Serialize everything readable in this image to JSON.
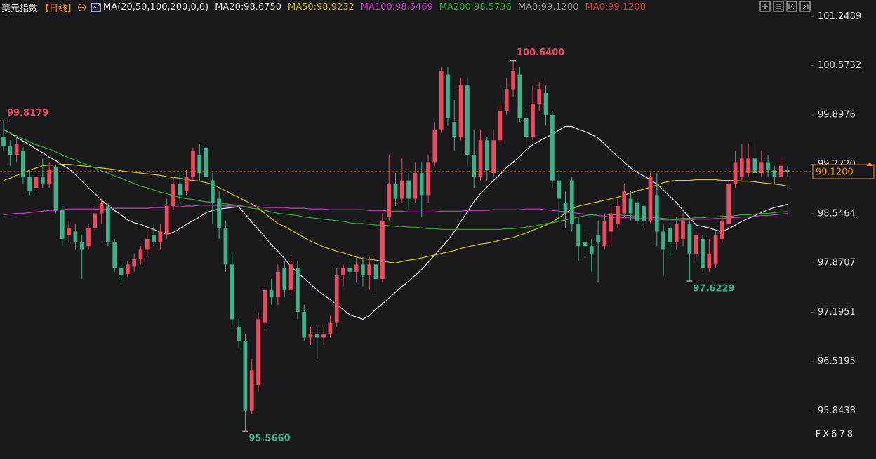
{
  "chart_data": {
    "type": "candlestick",
    "title": "美元指数",
    "period": "【日线】",
    "indicator": "MA(20,50,100,200,0,0)",
    "up_color": "#ec4a5e",
    "down_color": "#3fb08c",
    "ylim": [
      95.28,
      101.3
    ],
    "yticks": [
      101.2489,
      100.5732,
      99.8976,
      {
        "value": 99.222,
        "label": "99.2220"
      },
      98.5464,
      97.8707,
      97.1951,
      96.5195,
      95.8438
    ],
    "grid": false,
    "last_price": {
      "value": 99.12,
      "label": "99.1200",
      "color": "#f0902a"
    },
    "annotations": [
      {
        "value": 99.8179,
        "label": "99.8179"
      },
      {
        "value": 100.64,
        "label": "100.6400"
      },
      {
        "value": 95.566,
        "label": "95.5660"
      },
      {
        "value": 97.6229,
        "label": "97.6229"
      }
    ],
    "watermark": "FX678",
    "open": [
      99.6,
      99.47,
      99.35,
      99.4,
      99.05,
      98.9,
      99.05,
      98.95,
      99.18,
      98.6,
      98.25,
      98.3,
      98.15,
      98.1,
      98.35,
      98.55,
      98.65,
      98.15,
      97.8,
      97.72,
      97.82,
      97.92,
      98.05,
      98.25,
      98.15,
      98.25,
      98.65,
      98.95,
      98.85,
      99.05,
      99.35,
      99.45,
      99.0,
      98.75,
      98.35,
      97.85,
      97.0,
      96.8,
      95.85,
      96.2,
      97.05,
      97.5,
      97.4,
      97.8,
      97.5,
      97.8,
      97.2,
      96.85,
      96.9,
      96.85,
      96.9,
      97.05,
      97.7,
      97.8,
      97.75,
      97.85,
      97.7,
      97.85,
      97.65,
      98.5,
      98.95,
      98.75,
      99.0,
      98.75,
      99.1,
      98.8,
      99.25,
      99.7,
      100.45,
      99.8,
      99.6,
      100.3,
      99.35,
      99.05,
      99.55,
      99.1,
      99.55,
      99.95,
      100.25,
      100.45,
      99.85,
      99.6,
      100.05,
      100.2,
      99.9,
      99.0,
      98.7,
      99.0,
      98.4,
      98.15,
      98.1,
      98.25,
      98.1,
      98.3,
      98.4,
      98.55,
      98.75,
      98.7,
      98.65,
      98.45,
      98.8,
      98.3,
      98.35,
      98.15,
      98.2,
      98.4,
      98.0,
      98.2,
      97.8,
      97.85,
      98.2,
      98.4,
      98.95,
      99.05,
      99.1,
      99.3,
      99.1,
      99.25,
      99.15,
      99.05,
      99.15
    ],
    "high": [
      99.8179,
      99.55,
      99.6,
      99.45,
      99.15,
      99.2,
      99.3,
      99.25,
      99.22,
      98.65,
      98.45,
      98.4,
      98.25,
      98.4,
      98.65,
      98.75,
      98.7,
      98.2,
      97.9,
      97.9,
      98.0,
      98.1,
      98.3,
      98.4,
      98.4,
      98.75,
      99.05,
      99.1,
      99.15,
      99.45,
      99.5,
      99.5,
      99.1,
      98.85,
      98.45,
      98.0,
      97.1,
      96.9,
      96.55,
      97.2,
      97.6,
      97.65,
      97.85,
      97.9,
      97.95,
      97.9,
      97.3,
      97.0,
      97.0,
      97.0,
      97.15,
      97.8,
      97.85,
      97.95,
      97.95,
      97.95,
      97.95,
      97.95,
      98.55,
      99.35,
      99.1,
      99.3,
      99.1,
      99.25,
      99.25,
      99.35,
      99.8,
      100.55,
      100.55,
      100.1,
      100.4,
      100.4,
      99.7,
      99.7,
      99.6,
      99.7,
      100.05,
      100.4,
      100.64,
      100.55,
      99.95,
      100.3,
      100.35,
      100.3,
      99.95,
      99.15,
      98.85,
      99.05,
      98.5,
      98.3,
      98.2,
      98.45,
      98.55,
      98.65,
      98.75,
      98.95,
      98.85,
      98.75,
      98.7,
      99.1,
      99.1,
      98.4,
      98.5,
      98.5,
      98.55,
      98.45,
      98.3,
      98.25,
      98.2,
      98.3,
      98.55,
      99.0,
      99.4,
      99.5,
      99.5,
      99.55,
      99.4,
      99.35,
      99.2,
      99.3,
      99.2
    ],
    "low": [
      99.4,
      99.2,
      99.25,
      98.95,
      98.8,
      98.85,
      98.9,
      98.9,
      98.55,
      98.1,
      98.15,
      98.05,
      97.65,
      98.05,
      98.3,
      98.4,
      98.1,
      97.75,
      97.6,
      97.68,
      97.75,
      97.85,
      97.95,
      98.1,
      98.05,
      98.2,
      98.6,
      98.7,
      98.8,
      99.0,
      99.0,
      98.95,
      98.4,
      98.2,
      97.75,
      97.0,
      96.7,
      95.566,
      95.8,
      96.1,
      96.95,
      97.3,
      97.3,
      97.4,
      97.45,
      97.1,
      96.8,
      96.75,
      96.55,
      96.75,
      96.85,
      97.0,
      97.55,
      97.65,
      97.6,
      97.55,
      97.5,
      97.45,
      97.6,
      98.45,
      98.65,
      98.7,
      98.6,
      98.7,
      98.5,
      98.7,
      99.2,
      99.65,
      99.75,
      99.4,
      99.55,
      99.2,
      98.9,
      99.0,
      99.0,
      99.05,
      99.5,
      99.9,
      100.15,
      99.8,
      99.45,
      99.55,
      99.95,
      99.75,
      98.9,
      98.45,
      98.35,
      98.3,
      97.9,
      97.95,
      97.75,
      97.6,
      98.05,
      98.1,
      98.35,
      98.5,
      98.45,
      98.4,
      98.35,
      98.4,
      98.1,
      97.7,
      97.95,
      98.05,
      98.1,
      97.6229,
      97.9,
      97.75,
      97.75,
      97.8,
      98.15,
      98.35,
      98.9,
      99.0,
      99.05,
      99.05,
      99.05,
      99.05,
      98.95,
      99.0,
      99.05
    ],
    "close": [
      99.47,
      99.35,
      99.5,
      99.05,
      98.85,
      99.05,
      98.95,
      99.15,
      98.6,
      98.2,
      98.35,
      98.15,
      98.05,
      98.35,
      98.55,
      98.7,
      98.15,
      97.8,
      97.7,
      97.85,
      97.92,
      98.05,
      98.2,
      98.15,
      98.3,
      98.65,
      98.95,
      98.8,
      99.05,
      99.4,
      99.1,
      99.05,
      98.7,
      98.35,
      97.85,
      97.1,
      96.8,
      95.85,
      96.4,
      97.1,
      97.5,
      97.4,
      97.75,
      97.5,
      97.85,
      97.2,
      96.85,
      96.9,
      96.85,
      96.9,
      97.05,
      97.7,
      97.8,
      97.75,
      97.85,
      97.7,
      97.85,
      97.65,
      98.45,
      98.95,
      98.75,
      99.0,
      98.75,
      99.1,
      98.8,
      99.25,
      99.7,
      100.5,
      99.85,
      99.6,
      100.3,
      99.35,
      99.05,
      99.55,
      99.15,
      99.55,
      99.95,
      100.25,
      100.5,
      99.85,
      99.6,
      100.05,
      100.25,
      99.9,
      99.0,
      98.75,
      98.55,
      98.4,
      98.1,
      98.1,
      98.0,
      98.15,
      98.45,
      98.55,
      98.65,
      98.85,
      98.55,
      98.45,
      98.45,
      99.05,
      98.3,
      98.05,
      98.15,
      98.4,
      98.45,
      98.0,
      98.25,
      97.8,
      98.0,
      98.25,
      98.45,
      98.95,
      99.25,
      99.3,
      99.3,
      99.1,
      99.25,
      99.15,
      99.05,
      99.2,
      99.12
    ],
    "series": [
      {
        "name": "MA20:98.6750",
        "color": "#e6e6e6",
        "values": [
          99.7,
          99.65,
          99.59,
          99.54,
          99.49,
          99.43,
          99.38,
          99.32,
          99.27,
          99.21,
          99.16,
          99.08,
          98.99,
          98.9,
          98.82,
          98.73,
          98.66,
          98.59,
          98.53,
          98.46,
          98.42,
          98.4,
          98.36,
          98.33,
          98.29,
          98.26,
          98.29,
          98.34,
          98.4,
          98.45,
          98.5,
          98.56,
          98.59,
          98.61,
          98.62,
          98.63,
          98.64,
          98.54,
          98.43,
          98.33,
          98.23,
          98.12,
          98.03,
          97.93,
          97.82,
          97.74,
          97.66,
          97.58,
          97.5,
          97.43,
          97.37,
          97.3,
          97.23,
          97.16,
          97.13,
          97.1,
          97.15,
          97.24,
          97.31,
          97.39,
          97.47,
          97.55,
          97.62,
          97.7,
          97.78,
          97.88,
          97.98,
          98.08,
          98.18,
          98.3,
          98.44,
          98.57,
          98.71,
          98.82,
          98.91,
          99.0,
          99.08,
          99.18,
          99.25,
          99.33,
          99.42,
          99.49,
          99.54,
          99.59,
          99.63,
          99.69,
          99.74,
          99.74,
          99.7,
          99.67,
          99.63,
          99.58,
          99.5,
          99.41,
          99.33,
          99.25,
          99.17,
          99.11,
          99.06,
          99.01,
          98.95,
          98.87,
          98.78,
          98.7,
          98.59,
          98.49,
          98.39,
          98.37,
          98.35,
          98.32,
          98.3,
          98.34,
          98.39,
          98.44,
          98.48,
          98.52,
          98.56,
          98.6,
          98.63,
          98.65,
          98.675
        ]
      },
      {
        "name": "MA50:98.9232",
        "color": "#d6c41c",
        "values": [
          99.0,
          99.03,
          99.07,
          99.1,
          99.14,
          99.17,
          99.2,
          99.21,
          99.21,
          99.22,
          99.22,
          99.21,
          99.2,
          99.19,
          99.18,
          99.17,
          99.16,
          99.15,
          99.13,
          99.12,
          99.11,
          99.1,
          99.09,
          99.08,
          99.07,
          99.05,
          99.04,
          99.03,
          99.01,
          99.0,
          98.99,
          98.97,
          98.95,
          98.9,
          98.86,
          98.81,
          98.77,
          98.72,
          98.68,
          98.62,
          98.55,
          98.48,
          98.41,
          98.37,
          98.32,
          98.27,
          98.22,
          98.17,
          98.13,
          98.09,
          98.06,
          98.03,
          98.01,
          97.98,
          97.95,
          97.93,
          97.92,
          97.91,
          97.89,
          97.88,
          97.87,
          97.89,
          97.91,
          97.92,
          97.94,
          97.96,
          97.98,
          98.0,
          98.02,
          98.04,
          98.07,
          98.09,
          98.11,
          98.13,
          98.14,
          98.16,
          98.18,
          98.2,
          98.22,
          98.25,
          98.28,
          98.32,
          98.35,
          98.39,
          98.43,
          98.49,
          98.55,
          98.61,
          98.65,
          98.67,
          98.69,
          98.71,
          98.73,
          98.75,
          98.77,
          98.8,
          98.83,
          98.86,
          98.88,
          98.91,
          98.94,
          98.97,
          98.99,
          99.0,
          99.0,
          99.0,
          99.01,
          99.01,
          99.01,
          99.01,
          99.0,
          99.0,
          99.0,
          98.99,
          98.99,
          98.98,
          98.97,
          98.96,
          98.95,
          98.94,
          98.9232
        ]
      },
      {
        "name": "MA100:98.5469",
        "color": "#c93ac9",
        "values": [
          98.53,
          98.54,
          98.55,
          98.55,
          98.56,
          98.57,
          98.58,
          98.59,
          98.59,
          98.6,
          98.61,
          98.61,
          98.61,
          98.61,
          98.61,
          98.61,
          98.61,
          98.62,
          98.62,
          98.62,
          98.62,
          98.62,
          98.62,
          98.63,
          98.63,
          98.63,
          98.64,
          98.64,
          98.65,
          98.65,
          98.66,
          98.66,
          98.66,
          98.66,
          98.65,
          98.65,
          98.65,
          98.64,
          98.64,
          98.64,
          98.63,
          98.63,
          98.63,
          98.63,
          98.62,
          98.62,
          98.62,
          98.61,
          98.61,
          98.61,
          98.6,
          98.6,
          98.6,
          98.6,
          98.6,
          98.6,
          98.59,
          98.59,
          98.59,
          98.58,
          98.58,
          98.58,
          98.57,
          98.57,
          98.57,
          98.57,
          98.57,
          98.58,
          98.58,
          98.58,
          98.58,
          98.59,
          98.59,
          98.59,
          98.59,
          98.6,
          98.6,
          98.6,
          98.6,
          98.6,
          98.61,
          98.61,
          98.61,
          98.6,
          98.59,
          98.58,
          98.57,
          98.56,
          98.55,
          98.54,
          98.53,
          98.52,
          98.51,
          98.5,
          98.49,
          98.49,
          98.49,
          98.48,
          98.48,
          98.47,
          98.47,
          98.46,
          98.46,
          98.46,
          98.46,
          98.46,
          98.47,
          98.47,
          98.47,
          98.48,
          98.48,
          98.49,
          98.49,
          98.5,
          98.5,
          98.51,
          98.52,
          98.52,
          98.53,
          98.54,
          98.5469
        ]
      },
      {
        "name": "MA200:98.5736",
        "color": "#2fb02f",
        "values": [
          99.69,
          99.65,
          99.61,
          99.57,
          99.53,
          99.49,
          99.46,
          99.43,
          99.39,
          99.35,
          99.31,
          99.28,
          99.24,
          99.21,
          99.17,
          99.13,
          99.1,
          99.06,
          99.03,
          98.99,
          98.96,
          98.92,
          98.9,
          98.87,
          98.84,
          98.82,
          98.79,
          98.77,
          98.75,
          98.74,
          98.72,
          98.71,
          98.7,
          98.69,
          98.68,
          98.67,
          98.66,
          98.64,
          98.62,
          98.61,
          98.59,
          98.57,
          98.55,
          98.54,
          98.53,
          98.52,
          98.5,
          98.49,
          98.48,
          98.47,
          98.46,
          98.45,
          98.44,
          98.42,
          98.41,
          98.41,
          98.4,
          98.39,
          98.39,
          98.38,
          98.37,
          98.37,
          98.36,
          98.36,
          98.35,
          98.34,
          98.34,
          98.33,
          98.33,
          98.33,
          98.33,
          98.33,
          98.33,
          98.33,
          98.33,
          98.33,
          98.33,
          98.34,
          98.34,
          98.35,
          98.36,
          98.37,
          98.39,
          98.41,
          98.42,
          98.44,
          98.46,
          98.48,
          98.5,
          98.52,
          98.53,
          98.54,
          98.54,
          98.53,
          98.53,
          98.52,
          98.52,
          98.51,
          98.5,
          98.5,
          98.49,
          98.48,
          98.47,
          98.47,
          98.48,
          98.48,
          98.49,
          98.49,
          98.5,
          98.5,
          98.51,
          98.51,
          98.52,
          98.53,
          98.53,
          98.54,
          98.55,
          98.55,
          98.56,
          98.57,
          98.5736
        ]
      }
    ],
    "legend_extra": [
      {
        "name": "MA0:99.1200",
        "color": "#8c8c8c"
      },
      {
        "name": "MA0:99.1200",
        "color": "#e23a3a"
      }
    ]
  }
}
